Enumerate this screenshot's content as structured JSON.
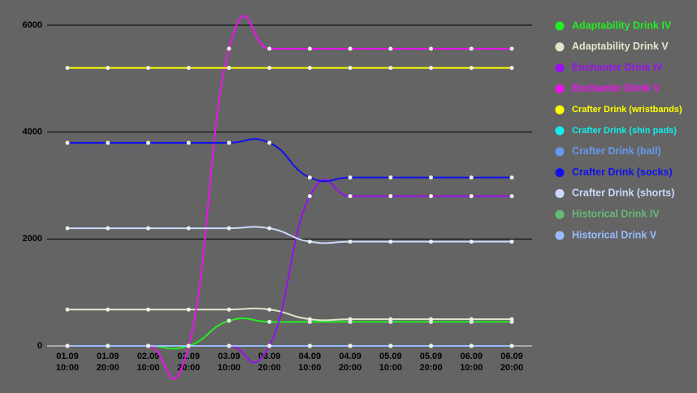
{
  "chart_data": {
    "type": "line",
    "categories": [
      "01.09 10:00",
      "01.09 20:00",
      "02.09 10:00",
      "02.09 20:00",
      "03.09 10:00",
      "03.09 20:00",
      "04.09 10:00",
      "04.09 20:00",
      "05.09 10:00",
      "05.09 20:00",
      "06.09 10:00",
      "06.09 20:00"
    ],
    "ylim": [
      0,
      6000
    ],
    "yticks": [
      0,
      2000,
      4000,
      6000
    ],
    "grid": true,
    "legend": "right",
    "series": [
      {
        "name": "Adaptability Drink IV",
        "color": "#22ee22",
        "values": [
          0,
          0,
          0,
          0,
          470,
          450,
          450,
          450,
          450,
          450,
          450,
          450
        ]
      },
      {
        "name": "Adaptability Drink V",
        "color": "#dde8cc",
        "values": [
          680,
          680,
          680,
          680,
          680,
          680,
          500,
          500,
          500,
          500,
          500,
          500
        ]
      },
      {
        "name": "Enchanter Drink IV",
        "color": "#9911ee",
        "values": [
          0,
          0,
          0,
          0,
          0,
          0,
          2800,
          2800,
          2800,
          2800,
          2800,
          2800
        ]
      },
      {
        "name": "Enchanter Drink V",
        "color": "#ee11ee",
        "values": [
          0,
          0,
          0,
          0,
          5560,
          5560,
          5560,
          5560,
          5560,
          5560,
          5560,
          5560
        ]
      },
      {
        "name": "Crafter Drink (wristbands)",
        "color": "#ffff00",
        "values": [
          5200,
          5200,
          5200,
          5200,
          5200,
          5200,
          5200,
          5200,
          5200,
          5200,
          5200,
          5200
        ]
      },
      {
        "name": "Crafter Drink (shin pads)",
        "color": "#11eeee",
        "values": [
          0,
          0,
          0,
          0,
          0,
          0,
          0,
          0,
          0,
          0,
          0,
          0
        ]
      },
      {
        "name": "Crafter Drink (ball)",
        "color": "#6699ee",
        "values": [
          0,
          0,
          0,
          0,
          0,
          0,
          0,
          0,
          0,
          0,
          0,
          0
        ]
      },
      {
        "name": "Crafter Drink (socks)",
        "color": "#1111ee",
        "values": [
          3800,
          3800,
          3800,
          3800,
          3800,
          3800,
          3150,
          3150,
          3150,
          3150,
          3150,
          3150
        ]
      },
      {
        "name": "Crafter Drink (shorts)",
        "color": "#ccd8ff",
        "values": [
          2200,
          2200,
          2200,
          2200,
          2200,
          2200,
          1950,
          1950,
          1950,
          1950,
          1950,
          1950
        ]
      },
      {
        "name": "Historical Drink IV",
        "color": "#66bb77",
        "values": [
          0,
          0,
          0,
          0,
          0,
          0,
          0,
          0,
          0,
          0,
          0,
          0
        ]
      },
      {
        "name": "Historical Drink V",
        "color": "#99bbff",
        "values": [
          0,
          0,
          0,
          0,
          0,
          0,
          0,
          0,
          0,
          0,
          0,
          0
        ]
      }
    ]
  }
}
